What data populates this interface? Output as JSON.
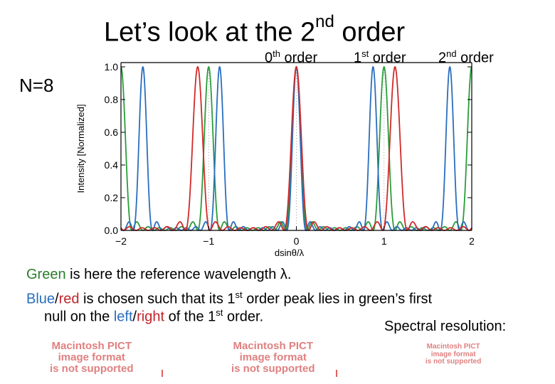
{
  "slide": {
    "title_pre": "Let’s look at the 2",
    "title_sup": "nd",
    "title_post": " order",
    "n_label": "N=8",
    "orders": {
      "zero": {
        "num": "0",
        "sup": "th",
        "word": " order"
      },
      "first": {
        "num": "1",
        "sup": "st",
        "word": " order"
      },
      "second": {
        "num": "2",
        "sup": "nd",
        "word": " order"
      }
    },
    "line1": {
      "green_word": "Green",
      "rest": " is here the reference wavelength λ."
    },
    "line2": {
      "blue_word": "Blue",
      "slash": "/",
      "red_word": "red",
      "rest_a": " is chosen such that its 1",
      "sup": "st",
      "rest_b": " order peak lies in green’s first"
    },
    "line3": {
      "pre": "null on the ",
      "left_word": "left",
      "slash": "/",
      "right_word": "right",
      "mid": " of the 1",
      "sup": "st",
      "post": " order."
    },
    "spectral_label": "Spectral resolution:",
    "pict_placeholder": {
      "line1": "Macintosh PICT",
      "line2": "image format",
      "line3": "is not supported"
    }
  },
  "chart_data": {
    "type": "line",
    "xlabel": "dsinθ/λ",
    "ylabel": "Intensity [Normalized]",
    "xlim": [
      -2,
      2
    ],
    "ylim": [
      0,
      1.0
    ],
    "xticks": [
      "−2",
      "−1",
      "0",
      "1",
      "2"
    ],
    "yticks": [
      "0.0",
      "0.2",
      "0.4",
      "0.6",
      "0.8",
      "1.0"
    ],
    "N": 8,
    "series": [
      {
        "color": "#2a9d3a",
        "wavelength_ratio": 1.0,
        "peaks": [
          -2,
          -1,
          0,
          1,
          2
        ]
      },
      {
        "color": "#2a6ebd",
        "wavelength_ratio": 0.875,
        "peaks": [
          -1.75,
          -0.875,
          0,
          0.875,
          1.75
        ]
      },
      {
        "color": "#d02a2a",
        "wavelength_ratio": 1.125,
        "peaks": [
          -2.25,
          -1.125,
          0,
          1.125,
          2.25
        ]
      }
    ]
  }
}
